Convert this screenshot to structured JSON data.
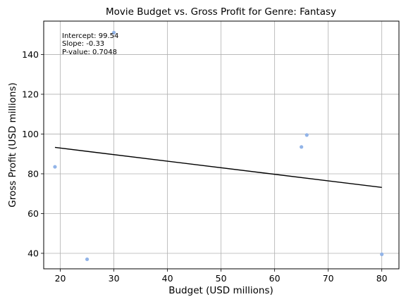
{
  "chart_data": {
    "type": "scatter",
    "title": "Movie Budget vs. Gross Profit for Genre: Fantasy",
    "xlabel": "Budget (USD millions)",
    "ylabel": "Gross Profit (USD millions)",
    "xlim": [
      16.9,
      83.2
    ],
    "ylim": [
      32.2,
      156.8
    ],
    "xticks": [
      20,
      30,
      40,
      50,
      60,
      70,
      80
    ],
    "yticks": [
      40,
      60,
      80,
      100,
      120,
      140
    ],
    "grid": true,
    "points": [
      {
        "x": 19,
        "y": 83.5
      },
      {
        "x": 25,
        "y": 37
      },
      {
        "x": 30,
        "y": 151
      },
      {
        "x": 65,
        "y": 93.5
      },
      {
        "x": 66,
        "y": 99.5
      },
      {
        "x": 80,
        "y": 39.5
      }
    ],
    "regression": {
      "intercept": 99.54,
      "slope": -0.33,
      "x_start": 19,
      "x_end": 80
    },
    "annotations": [
      "Intercept: 99.54",
      "Slope: -0.33",
      "P-value: 0.7048"
    ],
    "colors": {
      "points": "#92b4e8",
      "line": "#000000",
      "grid": "#b0b0b0"
    }
  }
}
